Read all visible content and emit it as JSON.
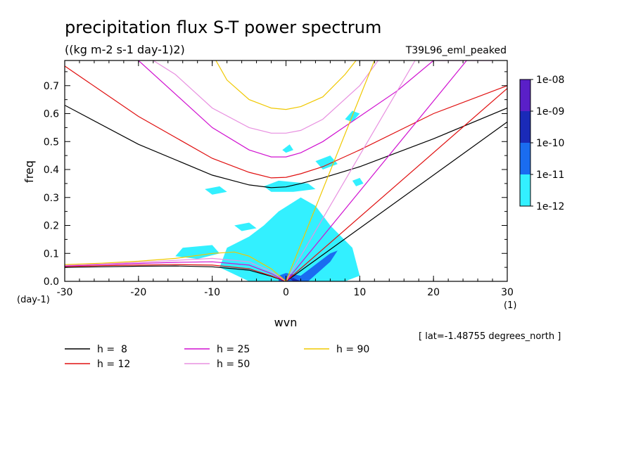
{
  "chart_data": {
    "type": "line",
    "title": "precipitation flux S-T power spectrum",
    "subtitle": "((kg m-2 s-1 day-1)2)",
    "run_label": "T39L96_eml_peaked",
    "xlabel": "wvn",
    "ylabel": "freq",
    "x_unit": "(1)",
    "y_unit": "(day-1)",
    "xlim": [
      -30,
      30
    ],
    "ylim": [
      0,
      0.79
    ],
    "x_ticks": [
      -30,
      -20,
      -10,
      0,
      10,
      20,
      30
    ],
    "x_tick_labels": [
      "-30",
      "-20",
      "-10",
      "0",
      "10",
      "20",
      "30"
    ],
    "y_ticks": [
      0,
      0.1,
      0.2,
      0.3,
      0.4,
      0.5,
      0.6,
      0.7
    ],
    "y_tick_labels": [
      "0.0",
      "0.1",
      "0.2",
      "0.3",
      "0.4",
      "0.5",
      "0.6",
      "0.7"
    ],
    "grid": false,
    "annotation": "[ lat=-1.48755 degrees_north ]",
    "colorbar": {
      "labels": [
        "1e-08",
        "1e-09",
        "1e-10",
        "1e-11",
        "1e-12"
      ],
      "colors": [
        "#5a1fc8",
        "#1a2ab8",
        "#1a6cf0",
        "#33f0ff"
      ]
    },
    "dispersion_curves": [
      {
        "legend": "h =  8",
        "h": 8,
        "color": "#000000",
        "eig_n1": {
          "x": [
            -30,
            -20,
            -10,
            -5,
            -2,
            0,
            2,
            5,
            10,
            20,
            30
          ],
          "y": [
            0.63,
            0.49,
            0.38,
            0.345,
            0.335,
            0.338,
            0.35,
            0.37,
            0.41,
            0.51,
            0.62
          ]
        },
        "rossby_n1": {
          "x": [
            -30,
            -25,
            -20,
            -15,
            -10,
            -5,
            -2,
            0
          ],
          "y": [
            0.05,
            0.052,
            0.054,
            0.055,
            0.052,
            0.04,
            0.018,
            0.0
          ]
        },
        "kelvin": {
          "x": [
            0,
            30
          ],
          "y": [
            0,
            0.57
          ]
        }
      },
      {
        "legend": "h = 12",
        "h": 12,
        "color": "#e01010",
        "eig_n1": {
          "x": [
            -30,
            -20,
            -10,
            -5,
            -2,
            0,
            2,
            5,
            10,
            20,
            30
          ],
          "y": [
            0.77,
            0.59,
            0.44,
            0.39,
            0.37,
            0.372,
            0.385,
            0.41,
            0.47,
            0.6,
            0.7
          ]
        },
        "rossby_n1": {
          "x": [
            -30,
            -25,
            -20,
            -15,
            -10,
            -5,
            -2,
            0
          ],
          "y": [
            0.053,
            0.056,
            0.058,
            0.06,
            0.058,
            0.045,
            0.02,
            0.0
          ]
        },
        "kelvin": {
          "x": [
            0,
            30
          ],
          "y": [
            0,
            0.69
          ]
        }
      },
      {
        "legend": "h = 25",
        "h": 25,
        "color": "#d010d0",
        "eig_n1": {
          "x": [
            -20,
            -15,
            -10,
            -5,
            -2,
            0,
            2,
            5,
            10,
            15,
            20,
            28
          ],
          "y": [
            0.79,
            0.67,
            0.55,
            0.47,
            0.445,
            0.445,
            0.46,
            0.5,
            0.59,
            0.68,
            0.79,
            0.79
          ]
        },
        "rossby_n1": {
          "x": [
            -30,
            -25,
            -20,
            -15,
            -10,
            -5,
            -2,
            0
          ],
          "y": [
            0.055,
            0.06,
            0.064,
            0.068,
            0.07,
            0.058,
            0.028,
            0.0
          ]
        },
        "kelvin": {
          "x": [
            0,
            24.5
          ],
          "y": [
            0,
            0.79
          ]
        }
      },
      {
        "legend": "h = 50",
        "h": 50,
        "color": "#e890e0",
        "eig_n1": {
          "x": [
            -18,
            -15,
            -10,
            -5,
            -2,
            0,
            2,
            5,
            10,
            12.5
          ],
          "y": [
            0.79,
            0.74,
            0.62,
            0.55,
            0.53,
            0.53,
            0.54,
            0.58,
            0.7,
            0.79
          ]
        },
        "rossby_n1": {
          "x": [
            -30,
            -25,
            -20,
            -15,
            -10,
            -5,
            -2,
            0
          ],
          "y": [
            0.057,
            0.062,
            0.068,
            0.075,
            0.082,
            0.07,
            0.035,
            0.0
          ]
        },
        "kelvin": {
          "x": [
            0,
            17.5
          ],
          "y": [
            0,
            0.79
          ]
        }
      },
      {
        "legend": "h = 90",
        "h": 90,
        "color": "#f0c800",
        "eig_n1": {
          "x": [
            -9.5,
            -8,
            -5,
            -2,
            0,
            2,
            5,
            8,
            9.5
          ],
          "y": [
            0.79,
            0.72,
            0.65,
            0.62,
            0.615,
            0.625,
            0.66,
            0.74,
            0.79
          ]
        },
        "rossby_n1": {
          "x": [
            -30,
            -25,
            -20,
            -15,
            -10,
            -7,
            -5,
            -2,
            0
          ],
          "y": [
            0.06,
            0.065,
            0.072,
            0.082,
            0.1,
            0.105,
            0.09,
            0.045,
            0.0
          ]
        },
        "kelvin": {
          "x": [
            0,
            12
          ],
          "y": [
            0,
            0.79
          ]
        }
      }
    ],
    "power_regions": [
      {
        "level": "1e-12",
        "color": "#33f0ff",
        "pts": [
          [
            -8,
            0.12
          ],
          [
            -5,
            0.16
          ],
          [
            -3,
            0.2
          ],
          [
            -1,
            0.25
          ],
          [
            2,
            0.3
          ],
          [
            4,
            0.27
          ],
          [
            6,
            0.2
          ],
          [
            9,
            0.12
          ],
          [
            10,
            0.02
          ],
          [
            8,
            0.0
          ],
          [
            -5,
            0.0
          ],
          [
            -9,
            0.05
          ]
        ]
      },
      {
        "level": "1e-12",
        "color": "#33f0ff",
        "pts": [
          [
            -15,
            0.09
          ],
          [
            -12,
            0.08
          ],
          [
            -9,
            0.1
          ],
          [
            -10,
            0.13
          ],
          [
            -14,
            0.12
          ]
        ]
      },
      {
        "level": "1e-12",
        "color": "#33f0ff",
        "pts": [
          [
            -3,
            0.34
          ],
          [
            -1,
            0.36
          ],
          [
            3,
            0.35
          ],
          [
            4,
            0.33
          ],
          [
            1,
            0.32
          ],
          [
            -2,
            0.32
          ]
        ]
      },
      {
        "level": "1e-12",
        "color": "#33f0ff",
        "pts": [
          [
            -11,
            0.33
          ],
          [
            -9,
            0.34
          ],
          [
            -8,
            0.32
          ],
          [
            -10,
            0.31
          ]
        ]
      },
      {
        "level": "1e-12",
        "color": "#33f0ff",
        "pts": [
          [
            -7,
            0.2
          ],
          [
            -5,
            0.21
          ],
          [
            -4,
            0.19
          ],
          [
            -6,
            0.18
          ]
        ]
      },
      {
        "level": "1e-12",
        "color": "#33f0ff",
        "pts": [
          [
            4,
            0.43
          ],
          [
            6,
            0.45
          ],
          [
            7,
            0.42
          ],
          [
            5,
            0.4
          ]
        ]
      },
      {
        "level": "1e-12",
        "color": "#33f0ff",
        "pts": [
          [
            -0.5,
            0.47
          ],
          [
            0.5,
            0.49
          ],
          [
            1,
            0.47
          ],
          [
            0,
            0.46
          ]
        ]
      },
      {
        "level": "1e-12",
        "color": "#33f0ff",
        "pts": [
          [
            8,
            0.58
          ],
          [
            9,
            0.61
          ],
          [
            10,
            0.6
          ],
          [
            9,
            0.57
          ]
        ]
      },
      {
        "level": "1e-12",
        "color": "#33f0ff",
        "pts": [
          [
            2,
            0.2
          ],
          [
            5,
            0.18
          ],
          [
            6,
            0.17
          ],
          [
            3,
            0.16
          ]
        ]
      },
      {
        "level": "1e-12",
        "color": "#33f0ff",
        "pts": [
          [
            9,
            0.36
          ],
          [
            10,
            0.37
          ],
          [
            10.5,
            0.35
          ],
          [
            9.5,
            0.34
          ]
        ]
      },
      {
        "level": "1e-11",
        "color": "#1a6cf0",
        "pts": [
          [
            -1,
            0.02
          ],
          [
            0,
            0.03
          ],
          [
            1,
            0.025
          ],
          [
            2,
            0.02
          ],
          [
            4,
            0.06
          ],
          [
            6,
            0.1
          ],
          [
            7,
            0.11
          ],
          [
            6,
            0.07
          ],
          [
            3,
            0.0
          ],
          [
            -1,
            0.0
          ]
        ]
      },
      {
        "level": "1e-10",
        "color": "#1a2ab8",
        "pts": [
          [
            0.5,
            0.01
          ],
          [
            1,
            0.012
          ],
          [
            2,
            0.0
          ],
          [
            1,
            0.0
          ]
        ]
      }
    ]
  }
}
